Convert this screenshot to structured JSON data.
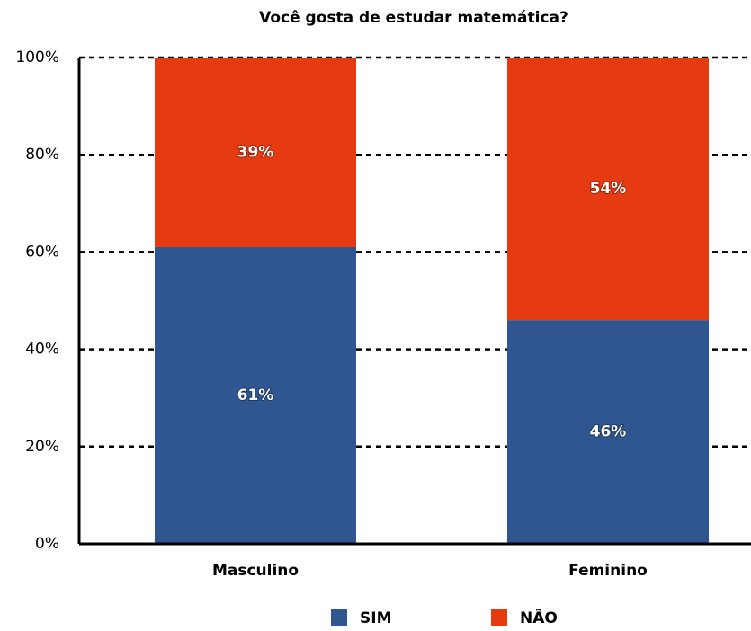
{
  "chart_data": {
    "type": "stacked_bar",
    "title": "Você gosta de estudar matemática?",
    "categories": [
      "Masculino",
      "Feminino"
    ],
    "series": [
      {
        "name": "SIM",
        "color": "#2f5690",
        "values": [
          61,
          46
        ],
        "value_labels": [
          "61%",
          "46%"
        ]
      },
      {
        "name": "NÃO",
        "color": "#e63a10",
        "values": [
          39,
          54
        ],
        "value_labels": [
          "39%",
          "54%"
        ]
      }
    ],
    "ylim": [
      0,
      100
    ],
    "yticks": [
      {
        "value": 0,
        "label": "0%"
      },
      {
        "value": 20,
        "label": "20%"
      },
      {
        "value": 40,
        "label": "40%"
      },
      {
        "value": 60,
        "label": "60%"
      },
      {
        "value": 80,
        "label": "80%"
      },
      {
        "value": 100,
        "label": "100%"
      }
    ],
    "grid": true,
    "legend": "bottom"
  }
}
